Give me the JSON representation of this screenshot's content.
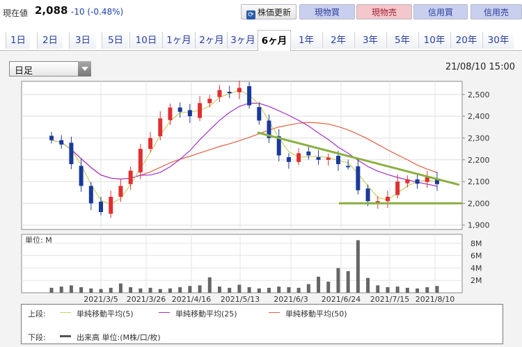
{
  "header": {
    "price_label": "現在値",
    "price_value": "2,088",
    "price_change": "-10 (-0.48%)",
    "buttons": {
      "refresh": "株価更新",
      "genbutsu_buy": "現物買",
      "genbutsu_sell": "現物売",
      "shinyo_buy": "信用買",
      "shinyo_sell": "信用売"
    },
    "colors": {
      "buy_bg": "#c9cfee",
      "sell_bg": "#f4c7cc",
      "refresh_icon": "#2a5ca8"
    }
  },
  "tabs": [
    {
      "label": "1日",
      "active": false
    },
    {
      "label": "2日",
      "active": false
    },
    {
      "label": "3日",
      "active": false
    },
    {
      "label": "5日",
      "active": false
    },
    {
      "label": "10日",
      "active": false
    },
    {
      "label": "1ヶ月",
      "active": false
    },
    {
      "label": "2ヶ月",
      "active": false
    },
    {
      "label": "3ヶ月",
      "active": false
    },
    {
      "label": "6ヶ月",
      "active": true
    },
    {
      "label": "1年",
      "active": false
    },
    {
      "label": "2年",
      "active": false
    },
    {
      "label": "3年",
      "active": false
    },
    {
      "label": "5年",
      "active": false
    },
    {
      "label": "10年",
      "active": false
    },
    {
      "label": "20年",
      "active": false
    },
    {
      "label": "30年",
      "active": false
    }
  ],
  "controls": {
    "period_select": "日足",
    "datetime": "21/08/10 15:00"
  },
  "chart_data": [
    {
      "type": "candlestick",
      "x_ticks": [
        "2021/3/5",
        "2021/3/26",
        "2021/4/16",
        "2021/5/13",
        "2021/6/3",
        "2021/6/24",
        "2021/7/15",
        "2021/8/10"
      ],
      "y_ticks": [
        "2,500",
        "2,400",
        "2,300",
        "2,200",
        "2,100",
        "2,000",
        "1,900"
      ],
      "ylim": [
        1880,
        2560
      ],
      "colors": {
        "up": "#e03030",
        "down": "#1a3a9a",
        "ma5": "#c8d060",
        "ma25": "#a030c8",
        "ma50": "#e06040",
        "trendline": "#8ab040"
      },
      "close_approx": [
        2290,
        2270,
        2180,
        2080,
        2000,
        1960,
        2030,
        2080,
        2150,
        2250,
        2300,
        2390,
        2440,
        2420,
        2400,
        2460,
        2480,
        2520,
        2510,
        2530,
        2450,
        2380,
        2300,
        2220,
        2190,
        2230,
        2220,
        2200,
        2210,
        2180,
        2170,
        2060,
        2010,
        2010,
        2030,
        2100,
        2110,
        2090,
        2120,
        2088
      ],
      "annotations": [
        "descending trendline",
        "support line at 2,000"
      ]
    },
    {
      "type": "bar",
      "title": "単位: M",
      "y_ticks": [
        "8M",
        "6M",
        "4M",
        "2M"
      ],
      "ylim": [
        0,
        9
      ],
      "values": [
        0.8,
        1.0,
        1.2,
        0.9,
        0.7,
        0.6,
        0.8,
        1.5,
        0.9,
        0.7,
        0.8,
        0.6,
        0.7,
        0.9,
        1.1,
        1.2,
        2.5,
        1.0,
        0.8,
        1.3,
        0.9,
        0.7,
        0.8,
        1.0,
        0.9,
        0.8,
        1.4,
        2.6,
        1.8,
        4.0,
        3.5,
        8.5,
        2.4,
        1.2,
        0.9,
        1.0,
        0.8,
        0.7,
        0.9,
        1.1
      ]
    }
  ],
  "legend": {
    "upper_label": "上段:",
    "lower_label": "下段:",
    "ma5": "単純移動平均(5)",
    "ma25": "単純移動平均(25)",
    "ma50": "単純移動平均(50)",
    "volume": "出来高 単位:(M株/口/枚)"
  }
}
